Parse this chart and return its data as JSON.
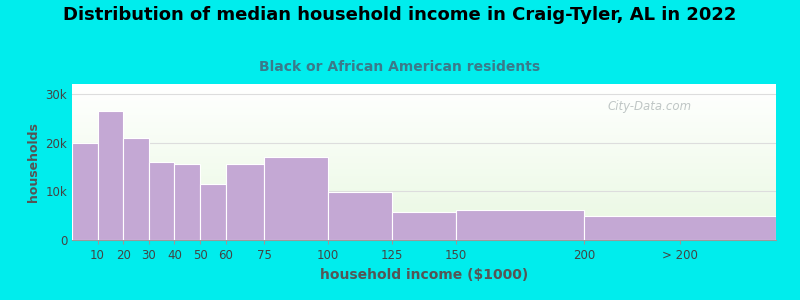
{
  "title": "Distribution of median household income in Craig-Tyler, AL in 2022",
  "subtitle": "Black or African American residents",
  "xlabel": "household income ($1000)",
  "ylabel": "households",
  "background_fig": "#00eded",
  "bar_color": "#c4a8d4",
  "bar_edge_color": "#ffffff",
  "categories": [
    "10",
    "20",
    "30",
    "40",
    "50",
    "60",
    "75",
    "100",
    "125",
    "150",
    "200",
    "> 200"
  ],
  "left_edges": [
    0,
    10,
    20,
    30,
    40,
    50,
    60,
    75,
    100,
    125,
    150,
    200
  ],
  "widths": [
    10,
    10,
    10,
    10,
    10,
    10,
    15,
    25,
    25,
    25,
    50,
    75
  ],
  "values": [
    20000,
    26500,
    21000,
    16000,
    15500,
    11500,
    15500,
    17000,
    9800,
    5800,
    6200,
    5000
  ],
  "yticks": [
    0,
    10000,
    20000,
    30000
  ],
  "ytick_labels": [
    "0",
    "10k",
    "20k",
    "30k"
  ],
  "ylim": [
    0,
    32000
  ],
  "xlim": [
    0,
    275
  ],
  "xtick_positions": [
    10,
    20,
    30,
    40,
    50,
    60,
    75,
    100,
    125,
    150,
    200,
    237.5
  ],
  "xtick_labels": [
    "10",
    "20",
    "30",
    "40",
    "50",
    "60",
    "75",
    "100",
    "125",
    "150",
    "200",
    "> 200"
  ],
  "watermark": "City-Data.com",
  "title_fontsize": 13,
  "subtitle_fontsize": 10,
  "xlabel_fontsize": 10,
  "ylabel_fontsize": 9,
  "title_color": "#000000",
  "subtitle_color": "#3a7a8a",
  "xlabel_color": "#555555",
  "ylabel_color": "#555555",
  "ax_bg_color_top": "#e8f5e0",
  "ax_bg_color_bottom": "#ffffff",
  "grid_color": "#dddddd",
  "watermark_color": "#b0b8b8",
  "watermark_alpha": 0.8
}
